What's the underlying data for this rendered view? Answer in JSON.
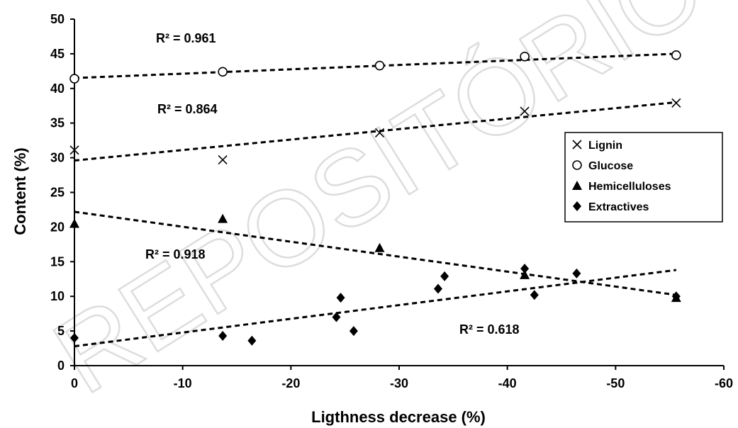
{
  "watermark": "REPOSITÓRIO",
  "chart_data": {
    "type": "scatter",
    "title": "",
    "xlabel": "Ligthness decrease (%)",
    "ylabel": "Content (%)",
    "xlim": [
      0,
      -60
    ],
    "ylim": [
      0,
      50
    ],
    "xticks": [
      0,
      -10,
      -20,
      -30,
      -40,
      -50,
      -60
    ],
    "yticks": [
      0,
      5,
      10,
      15,
      20,
      25,
      30,
      35,
      40,
      45,
      50
    ],
    "grid": false,
    "legend_position": "right",
    "series": [
      {
        "name": "Lignin",
        "marker": "x",
        "x": [
          0,
          -13.7,
          -28.2,
          -41.6,
          -55.6
        ],
        "y": [
          31.1,
          29.7,
          33.6,
          36.7,
          37.9
        ],
        "trend": {
          "x": [
            0,
            -55.6
          ],
          "y": [
            29.6,
            38.0
          ]
        },
        "r2": "R² = 0.864"
      },
      {
        "name": "Glucose",
        "marker": "circle",
        "x": [
          0,
          -13.7,
          -28.2,
          -41.6,
          -55.6
        ],
        "y": [
          41.4,
          42.4,
          43.3,
          44.6,
          44.8
        ],
        "trend": {
          "x": [
            0,
            -55.6
          ],
          "y": [
            41.5,
            45.0
          ]
        },
        "r2": "R² = 0.961"
      },
      {
        "name": "Hemicelluloses",
        "marker": "triangle",
        "x": [
          0,
          -13.7,
          -28.2,
          -41.6,
          -55.6
        ],
        "y": [
          20.5,
          21.2,
          17.0,
          13.1,
          9.8
        ],
        "trend": {
          "x": [
            0,
            -55.6
          ],
          "y": [
            22.2,
            10.2
          ]
        },
        "r2": "R² = 0.918"
      },
      {
        "name": "Extractives",
        "marker": "diamond",
        "x": [
          0,
          -13.7,
          -16.4,
          -24.2,
          -24.6,
          -25.8,
          -33.6,
          -34.2,
          -41.6,
          -42.5,
          -46.4,
          -55.6
        ],
        "y": [
          4.0,
          4.3,
          3.6,
          7.0,
          9.8,
          5.0,
          11.1,
          12.9,
          14.0,
          10.2,
          13.3,
          10.0
        ],
        "trend": {
          "x": [
            0,
            -55.6
          ],
          "y": [
            2.8,
            13.8
          ]
        },
        "r2": "R² = 0.618"
      }
    ]
  }
}
